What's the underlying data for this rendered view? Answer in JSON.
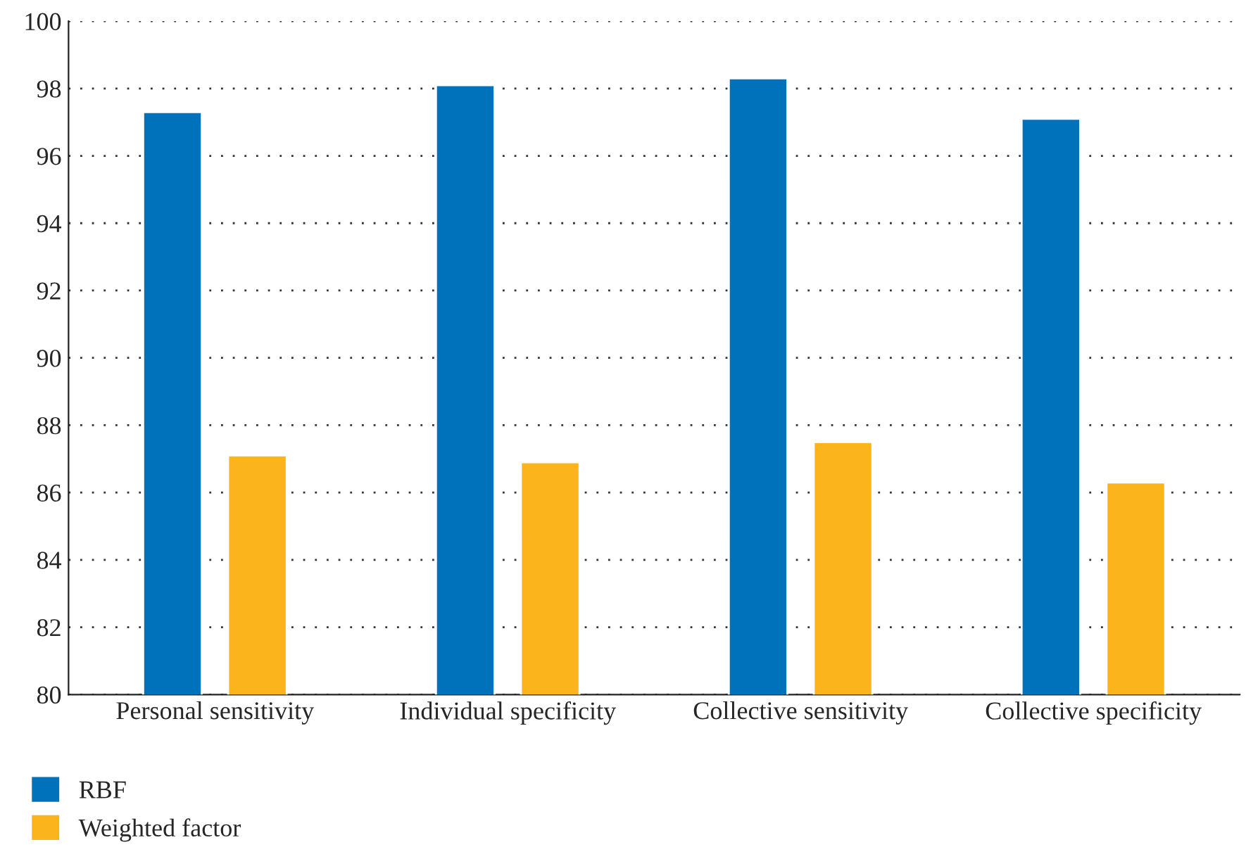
{
  "chart_data": {
    "type": "bar",
    "categories": [
      "Personal sensitivity",
      "Individual specificity",
      "Collective sensitivity",
      "Collective specificity"
    ],
    "series": [
      {
        "name": "RBF",
        "color": "#0072bc",
        "values": [
          97.3,
          98.1,
          98.3,
          97.1
        ]
      },
      {
        "name": "Weighted factor",
        "color": "#fbb41c",
        "values": [
          87.1,
          86.9,
          87.5,
          86.3
        ]
      }
    ],
    "ylim": [
      80,
      100
    ],
    "yticks": [
      80,
      82,
      84,
      86,
      88,
      90,
      92,
      94,
      96,
      98,
      100
    ],
    "grid": "y",
    "legend": "bottom left"
  }
}
